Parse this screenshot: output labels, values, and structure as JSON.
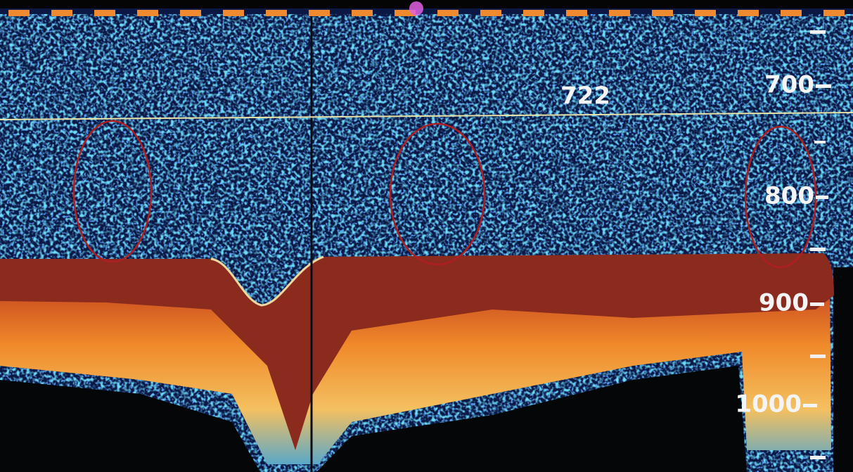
{
  "display": {
    "cursor_depth": "722",
    "depth_labels": [
      "700",
      "800",
      "900",
      "1000"
    ]
  }
}
